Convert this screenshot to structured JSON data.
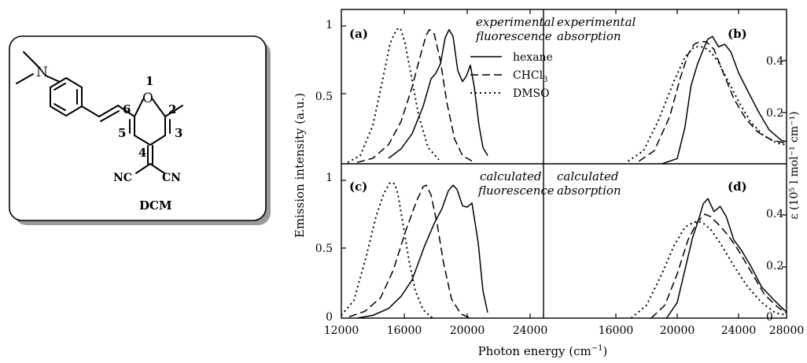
{
  "molecule": {
    "name": "DCM",
    "ring_positions": [
      "1",
      "2",
      "3",
      "4",
      "5",
      "6"
    ],
    "substituents": [
      "N",
      "O",
      "NC",
      "CN"
    ]
  },
  "axes": {
    "x_label": "Photon energy (cm",
    "x_label_sup": "−1",
    "x_label_close": ")",
    "y_left_label": "Emission intensity (a.u.)",
    "y_right_label": "ε (10⁵ l mol⁻¹ cm⁻¹)",
    "x_ticks_left": [
      "12000",
      "16000",
      "20000",
      "24000"
    ],
    "x_ticks_right": [
      "16000",
      "20000",
      "24000",
      "28000"
    ],
    "y_ticks_left": [
      "1",
      "0.5",
      "0"
    ],
    "y_ticks_right": [
      "0.4",
      "0.2",
      "0"
    ]
  },
  "legend": {
    "entries": [
      {
        "label": "hexane",
        "style": "solid"
      },
      {
        "label": "CHCl",
        "sub": "3",
        "style": "dashed"
      },
      {
        "label": "DMSO",
        "style": "dotted"
      }
    ]
  },
  "panels": {
    "a": {
      "tag": "(a)",
      "line1": "experimental",
      "line2": "fluorescence"
    },
    "b": {
      "tag": "(b)",
      "line1": "experimental",
      "line2": "absorption"
    },
    "c": {
      "tag": "(c)",
      "line1": "calculated",
      "line2": "fluorescence"
    },
    "d": {
      "tag": "(d)",
      "line1": "calculated",
      "line2": "absorption"
    }
  },
  "chart_data": [
    {
      "panel": "a",
      "type": "line",
      "title": "experimental fluorescence",
      "xlim": [
        12000,
        21500
      ],
      "ylim": [
        0,
        1.05
      ],
      "series": [
        {
          "name": "hexane",
          "style": "solid",
          "x": [
            15000,
            15800,
            16500,
            17200,
            17700,
            18000,
            18300,
            18600,
            18850,
            19100,
            19400,
            19700,
            19950,
            20200,
            20450,
            20750,
            21000,
            21300
          ],
          "y": [
            0.04,
            0.11,
            0.22,
            0.42,
            0.62,
            0.66,
            0.73,
            0.92,
            0.98,
            0.93,
            0.68,
            0.6,
            0.64,
            0.72,
            0.56,
            0.28,
            0.12,
            0.06
          ]
        },
        {
          "name": "CHCl3",
          "style": "dashed",
          "x": [
            13000,
            14000,
            15000,
            15800,
            16500,
            17000,
            17400,
            17600,
            17900,
            18300,
            18700,
            19200,
            19700,
            20300
          ],
          "y": [
            0.01,
            0.04,
            0.14,
            0.31,
            0.56,
            0.78,
            0.94,
            0.98,
            0.95,
            0.75,
            0.45,
            0.18,
            0.06,
            0.02
          ]
        },
        {
          "name": "DMSO",
          "style": "dotted",
          "x": [
            12400,
            13200,
            14000,
            14600,
            15100,
            15500,
            15750,
            16050,
            16450,
            16900,
            17500,
            18200
          ],
          "y": [
            0.01,
            0.06,
            0.28,
            0.6,
            0.88,
            0.98,
            0.99,
            0.88,
            0.64,
            0.36,
            0.12,
            0.03
          ]
        }
      ]
    },
    {
      "panel": "b",
      "type": "line",
      "title": "experimental absorption",
      "xlim": [
        12000,
        28000
      ],
      "ylim": [
        0,
        0.5
      ],
      "series": [
        {
          "name": "hexane",
          "style": "solid",
          "x": [
            19000,
            20000,
            20500,
            20900,
            21300,
            21700,
            22000,
            22300,
            22700,
            23100,
            23500,
            24000,
            24600,
            25300,
            26000,
            26800,
            27500,
            28000
          ],
          "y": [
            0.0,
            0.02,
            0.14,
            0.3,
            0.38,
            0.44,
            0.48,
            0.49,
            0.45,
            0.46,
            0.43,
            0.35,
            0.28,
            0.2,
            0.13,
            0.09,
            0.08,
            0.06
          ]
        },
        {
          "name": "CHCl3",
          "style": "dashed",
          "x": [
            17500,
            18500,
            19500,
            20200,
            20700,
            21100,
            21500,
            21900,
            22400,
            23000,
            23700,
            24500,
            25300,
            26200,
            27100,
            28000
          ],
          "y": [
            0.01,
            0.05,
            0.18,
            0.33,
            0.42,
            0.46,
            0.47,
            0.47,
            0.44,
            0.35,
            0.25,
            0.17,
            0.12,
            0.09,
            0.08,
            0.06
          ]
        },
        {
          "name": "DMSO",
          "style": "dotted",
          "x": [
            16800,
            17800,
            18800,
            19800,
            20500,
            21100,
            21700,
            22200,
            22700,
            23300,
            24000,
            24800,
            25600,
            26500,
            27300,
            28000
          ],
          "y": [
            0.01,
            0.05,
            0.17,
            0.32,
            0.41,
            0.45,
            0.45,
            0.43,
            0.39,
            0.32,
            0.24,
            0.16,
            0.11,
            0.08,
            0.07,
            0.05
          ]
        }
      ]
    },
    {
      "panel": "c",
      "type": "line",
      "title": "calculated fluorescence",
      "xlim": [
        12000,
        21500
      ],
      "ylim": [
        0,
        1.05
      ],
      "series": [
        {
          "name": "hexane",
          "style": "solid",
          "x": [
            13000,
            14000,
            15000,
            15800,
            16500,
            17300,
            17900,
            18400,
            18800,
            19100,
            19350,
            19700,
            20000,
            20300,
            20700,
            21000,
            21300
          ],
          "y": [
            0.0,
            0.02,
            0.07,
            0.16,
            0.28,
            0.53,
            0.69,
            0.8,
            0.93,
            0.97,
            0.94,
            0.82,
            0.81,
            0.84,
            0.55,
            0.2,
            0.04
          ]
        },
        {
          "name": "CHCl3",
          "style": "dashed",
          "x": [
            12500,
            13500,
            14500,
            15300,
            16100,
            16800,
            17200,
            17400,
            17700,
            18100,
            18500,
            19000,
            19600,
            20200
          ],
          "y": [
            0.01,
            0.05,
            0.15,
            0.35,
            0.64,
            0.86,
            0.96,
            0.97,
            0.9,
            0.68,
            0.4,
            0.14,
            0.03,
            0.0
          ]
        },
        {
          "name": "DMSO",
          "style": "dotted",
          "x": [
            12000,
            12800,
            13600,
            14200,
            14700,
            15100,
            15400,
            15600,
            15900,
            16300,
            16700,
            17200,
            17800
          ],
          "y": [
            0.02,
            0.13,
            0.46,
            0.74,
            0.91,
            0.99,
            0.98,
            0.9,
            0.7,
            0.42,
            0.2,
            0.06,
            0.0
          ]
        }
      ]
    },
    {
      "panel": "d",
      "type": "line",
      "title": "calculated absorption",
      "xlim": [
        12000,
        28000
      ],
      "ylim": [
        0,
        0.5
      ],
      "series": [
        {
          "name": "hexane",
          "style": "solid",
          "x": [
            19300,
            20000,
            20600,
            21000,
            21400,
            21700,
            22000,
            22400,
            22800,
            23200,
            23700,
            24200,
            24800,
            25500,
            26300,
            27000,
            27600,
            28000
          ],
          "y": [
            0.0,
            0.06,
            0.21,
            0.31,
            0.38,
            0.44,
            0.46,
            0.41,
            0.43,
            0.39,
            0.3,
            0.26,
            0.2,
            0.12,
            0.07,
            0.03,
            0.01,
            0.0
          ]
        },
        {
          "name": "CHCl3",
          "style": "dashed",
          "x": [
            18300,
            19200,
            20000,
            20700,
            21300,
            21800,
            22200,
            22700,
            23300,
            24000,
            24800,
            25700,
            26600,
            27400,
            28000
          ],
          "y": [
            0.0,
            0.05,
            0.17,
            0.3,
            0.37,
            0.4,
            0.39,
            0.36,
            0.32,
            0.26,
            0.18,
            0.09,
            0.04,
            0.01,
            0.0
          ]
        },
        {
          "name": "DMSO",
          "style": "dotted",
          "x": [
            17000,
            18000,
            19000,
            19800,
            20500,
            21100,
            21600,
            22200,
            22900,
            23700,
            24600,
            25500,
            26400,
            27300,
            28000
          ],
          "y": [
            0.0,
            0.05,
            0.17,
            0.28,
            0.35,
            0.37,
            0.37,
            0.34,
            0.28,
            0.2,
            0.12,
            0.06,
            0.02,
            0.01,
            0.0
          ]
        }
      ]
    }
  ]
}
